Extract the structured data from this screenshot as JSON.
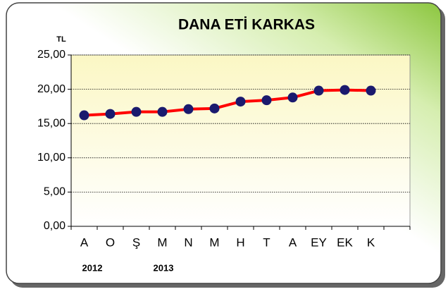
{
  "chart_data": {
    "type": "line",
    "title": "DANA ETİ KARKAS",
    "y_label": "TL",
    "categories": [
      "A",
      "O",
      "Ş",
      "M",
      "N",
      "M",
      "H",
      "T",
      "A",
      "EY",
      "EK",
      "K",
      null
    ],
    "values": [
      16.2,
      16.4,
      16.7,
      16.7,
      17.1,
      17.2,
      18.2,
      18.4,
      18.8,
      19.8,
      19.9,
      19.8,
      null
    ],
    "color": "#ff0000",
    "marker_color": "#1a1a6e",
    "annotations": [
      "2012",
      "2013"
    ],
    "ylim": [
      0,
      25
    ],
    "yticks": [
      {
        "value": 0,
        "label": "0,00"
      },
      {
        "value": 5,
        "label": "5,00"
      },
      {
        "value": 10,
        "label": "10,00"
      },
      {
        "value": 15,
        "label": "15,00"
      },
      {
        "value": 20,
        "label": "20,00"
      },
      {
        "value": 25,
        "label": "25,00"
      }
    ],
    "grid": true
  }
}
